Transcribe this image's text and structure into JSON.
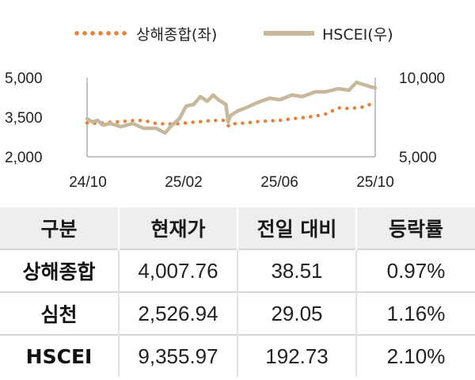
{
  "chart_data": {
    "type": "line",
    "legend": {
      "placement": "top",
      "items": [
        "상해종합(좌)",
        "HSCEI(우)"
      ]
    },
    "x_ticks": [
      "24/10",
      "25/02",
      "25/06",
      "25/10"
    ],
    "y_left": {
      "ticks": [
        "5,000",
        "3,500",
        "2,000"
      ],
      "range": [
        2000,
        5000
      ]
    },
    "y_right": {
      "ticks": [
        "10,000",
        "5,000"
      ],
      "range": [
        5000,
        10000
      ]
    },
    "grid": false,
    "series": [
      {
        "name": "상해종합(좌)",
        "axis": "left",
        "style": "dotted",
        "color": "#e8803a",
        "x": [
          "2024-10-01",
          "2024-10-15",
          "2024-11-01",
          "2024-11-15",
          "2024-12-01",
          "2024-12-15",
          "2025-01-01",
          "2025-01-15",
          "2025-02-01",
          "2025-02-15",
          "2025-03-01",
          "2025-03-15",
          "2025-04-01",
          "2025-04-08",
          "2025-04-15",
          "2025-05-01",
          "2025-05-15",
          "2025-06-01",
          "2025-06-15",
          "2025-07-01",
          "2025-07-15",
          "2025-08-01",
          "2025-08-15",
          "2025-09-01",
          "2025-09-15",
          "2025-10-01",
          "2025-10-15"
        ],
        "y": [
          3280,
          3260,
          3310,
          3330,
          3370,
          3380,
          3260,
          3240,
          3250,
          3300,
          3330,
          3370,
          3380,
          3150,
          3250,
          3280,
          3330,
          3360,
          3380,
          3440,
          3480,
          3540,
          3620,
          3850,
          3830,
          3870,
          4000
        ]
      },
      {
        "name": "HSCEI(우)",
        "axis": "right",
        "style": "solid",
        "color": "#c7b79b",
        "x": [
          "2024-10-01",
          "2024-10-08",
          "2024-10-15",
          "2024-10-22",
          "2024-11-01",
          "2024-11-15",
          "2024-12-01",
          "2024-12-15",
          "2025-01-01",
          "2025-01-13",
          "2025-01-20",
          "2025-02-01",
          "2025-02-10",
          "2025-02-20",
          "2025-03-01",
          "2025-03-10",
          "2025-03-18",
          "2025-03-25",
          "2025-04-04",
          "2025-04-07",
          "2025-04-10",
          "2025-04-20",
          "2025-05-01",
          "2025-05-15",
          "2025-06-01",
          "2025-06-15",
          "2025-07-01",
          "2025-07-15",
          "2025-08-01",
          "2025-08-15",
          "2025-09-01",
          "2025-09-15",
          "2025-09-25",
          "2025-10-05",
          "2025-10-15",
          "2025-10-20"
        ],
        "y": [
          7400,
          7200,
          7300,
          7000,
          7100,
          6900,
          7100,
          6800,
          6800,
          6500,
          6900,
          7400,
          8200,
          8300,
          8800,
          8500,
          8900,
          8600,
          8300,
          7200,
          7600,
          7900,
          8100,
          8400,
          8700,
          8600,
          8900,
          8800,
          9100,
          9100,
          9300,
          9200,
          9700,
          9550,
          9400,
          9355.97
        ]
      }
    ]
  },
  "table": {
    "headers": [
      "구분",
      "현재가",
      "전일 대비",
      "등락률"
    ],
    "rows": [
      [
        "상해종합",
        "4,007.76",
        "38.51",
        "0.97%"
      ],
      [
        "심천",
        "2,526.94",
        "29.05",
        "1.16%"
      ],
      [
        "HSCEI",
        "9,355.97",
        "192.73",
        "2.10%"
      ]
    ]
  }
}
